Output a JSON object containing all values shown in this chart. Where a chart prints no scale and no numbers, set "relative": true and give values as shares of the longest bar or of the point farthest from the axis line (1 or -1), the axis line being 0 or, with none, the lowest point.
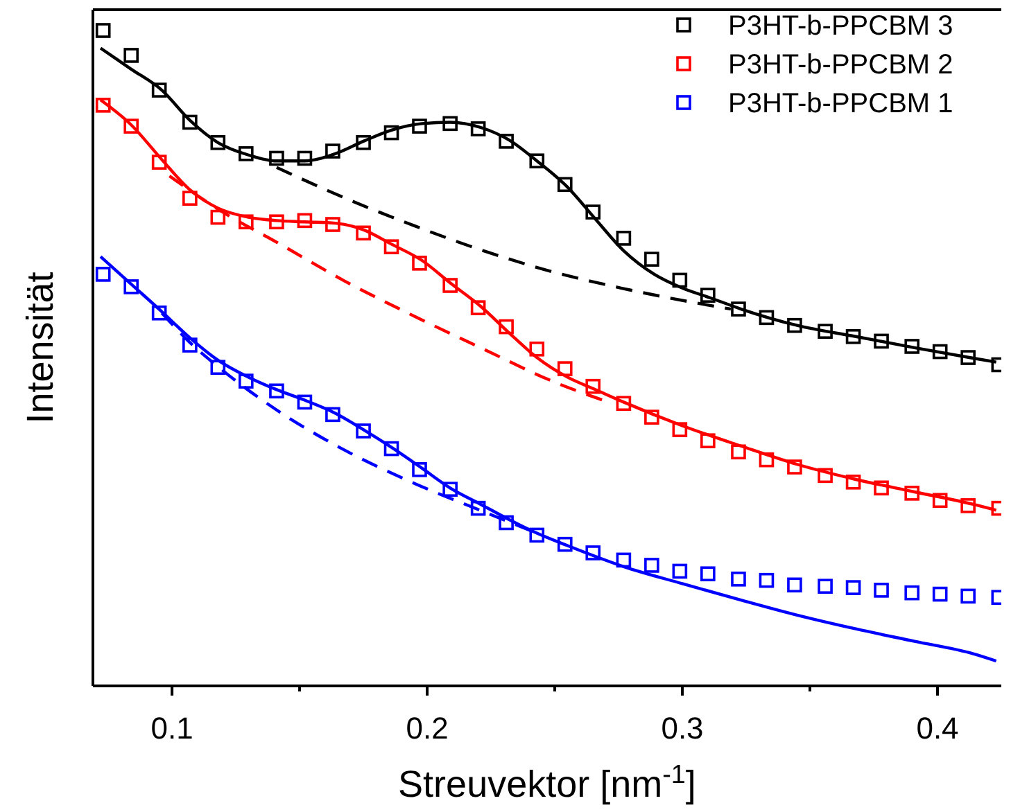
{
  "chart_data": {
    "type": "scatter",
    "relative": true,
    "xlabel": "Streuvektor [nm$^{-1}$]",
    "ylabel": "Intensität",
    "xlim": [
      0.069,
      0.425
    ],
    "xticks": [
      0.1,
      0.2,
      0.3,
      0.4
    ],
    "legend": "top right",
    "grid": false,
    "x": [
      0.073,
      0.084,
      0.095,
      0.107,
      0.118,
      0.129,
      0.141,
      0.152,
      0.163,
      0.175,
      0.186,
      0.197,
      0.209,
      0.22,
      0.231,
      0.243,
      0.254,
      0.265,
      0.277,
      0.288,
      0.299,
      0.31,
      0.322,
      0.333,
      0.344,
      0.356,
      0.367,
      0.378,
      0.39,
      0.401,
      0.412,
      0.424
    ],
    "series": [
      {
        "name": "P3HT-b-PPCBM 3",
        "type": "scatter",
        "marker": "square",
        "color": "#000000",
        "values": [
          1.0,
          0.962,
          0.909,
          0.86,
          0.829,
          0.812,
          0.805,
          0.805,
          0.816,
          0.829,
          0.844,
          0.854,
          0.858,
          0.85,
          0.831,
          0.801,
          0.765,
          0.723,
          0.683,
          0.651,
          0.619,
          0.596,
          0.575,
          0.562,
          0.55,
          0.541,
          0.533,
          0.526,
          0.518,
          0.51,
          0.501,
          0.49
        ]
      },
      {
        "name": "P3HT-b-PPCBM 2",
        "type": "scatter",
        "marker": "square",
        "color": "#ff0000",
        "values": [
          0.886,
          0.854,
          0.799,
          0.744,
          0.715,
          0.708,
          0.708,
          0.71,
          0.704,
          0.691,
          0.67,
          0.645,
          0.611,
          0.577,
          0.548,
          0.514,
          0.484,
          0.457,
          0.431,
          0.41,
          0.391,
          0.374,
          0.357,
          0.345,
          0.334,
          0.321,
          0.311,
          0.302,
          0.294,
          0.283,
          0.275,
          0.271
        ]
      },
      {
        "name": "P3HT-b-PPCBM 1",
        "type": "scatter",
        "marker": "square",
        "color": "#0000ff",
        "values": [
          0.628,
          0.609,
          0.569,
          0.52,
          0.486,
          0.465,
          0.45,
          0.433,
          0.414,
          0.389,
          0.362,
          0.33,
          0.3,
          0.271,
          0.249,
          0.23,
          0.216,
          0.203,
          0.192,
          0.184,
          0.175,
          0.171,
          0.163,
          0.161,
          0.154,
          0.152,
          0.15,
          0.146,
          0.142,
          0.14,
          0.137,
          0.135
        ]
      },
      {
        "type": "line",
        "line_style": "solid",
        "marker": "none",
        "color": "#000000",
        "x": [
          0.072,
          0.084,
          0.096,
          0.107,
          0.118,
          0.13,
          0.141,
          0.152,
          0.164,
          0.175,
          0.186,
          0.198,
          0.209,
          0.221,
          0.232,
          0.243,
          0.255,
          0.266,
          0.277,
          0.289,
          0.3,
          0.311,
          0.323,
          0.345,
          0.368,
          0.391,
          0.414,
          0.423
        ],
        "values": [
          0.973,
          0.941,
          0.909,
          0.863,
          0.829,
          0.81,
          0.801,
          0.801,
          0.812,
          0.831,
          0.848,
          0.858,
          0.86,
          0.852,
          0.833,
          0.801,
          0.761,
          0.712,
          0.664,
          0.628,
          0.607,
          0.592,
          0.575,
          0.55,
          0.533,
          0.516,
          0.5,
          0.494
        ]
      },
      {
        "type": "line",
        "line_style": "dashed",
        "marker": "none",
        "color": "#000000",
        "x": [
          0.141,
          0.168,
          0.195,
          0.222,
          0.249,
          0.276,
          0.303,
          0.319
        ],
        "values": [
          0.791,
          0.744,
          0.702,
          0.664,
          0.632,
          0.607,
          0.586,
          0.575
        ]
      },
      {
        "type": "line",
        "line_style": "solid",
        "marker": "none",
        "color": "#ff0000",
        "x": [
          0.072,
          0.084,
          0.096,
          0.107,
          0.118,
          0.13,
          0.141,
          0.152,
          0.164,
          0.175,
          0.186,
          0.198,
          0.209,
          0.221,
          0.232,
          0.243,
          0.255,
          0.266,
          0.277,
          0.3,
          0.323,
          0.345,
          0.368,
          0.391,
          0.414,
          0.423
        ],
        "values": [
          0.894,
          0.856,
          0.803,
          0.757,
          0.729,
          0.715,
          0.71,
          0.708,
          0.706,
          0.696,
          0.674,
          0.649,
          0.615,
          0.579,
          0.539,
          0.501,
          0.471,
          0.452,
          0.433,
          0.397,
          0.366,
          0.338,
          0.315,
          0.296,
          0.277,
          0.268
        ]
      },
      {
        "type": "line",
        "line_style": "dashed",
        "marker": "none",
        "color": "#ff0000",
        "x": [
          0.099,
          0.119,
          0.141,
          0.168,
          0.195,
          0.222,
          0.249,
          0.271
        ],
        "values": [
          0.778,
          0.725,
          0.677,
          0.617,
          0.564,
          0.514,
          0.465,
          0.433
        ]
      },
      {
        "type": "line",
        "line_style": "solid",
        "marker": "none",
        "color": "#0000ff",
        "x": [
          0.072,
          0.084,
          0.096,
          0.107,
          0.118,
          0.13,
          0.141,
          0.152,
          0.164,
          0.175,
          0.186,
          0.198,
          0.209,
          0.221,
          0.232,
          0.243,
          0.255,
          0.277,
          0.3,
          0.323,
          0.345,
          0.368,
          0.391,
          0.414,
          0.423
        ],
        "values": [
          0.655,
          0.613,
          0.571,
          0.531,
          0.497,
          0.471,
          0.452,
          0.436,
          0.416,
          0.391,
          0.364,
          0.332,
          0.302,
          0.277,
          0.254,
          0.233,
          0.214,
          0.182,
          0.156,
          0.131,
          0.108,
          0.087,
          0.068,
          0.049,
          0.038
        ]
      },
      {
        "type": "line",
        "line_style": "dashed",
        "marker": "none",
        "color": "#0000ff",
        "x": [
          0.096,
          0.107,
          0.119,
          0.141,
          0.168,
          0.195,
          0.222,
          0.243
        ],
        "values": [
          0.569,
          0.524,
          0.484,
          0.421,
          0.359,
          0.309,
          0.266,
          0.233
        ]
      }
    ]
  }
}
